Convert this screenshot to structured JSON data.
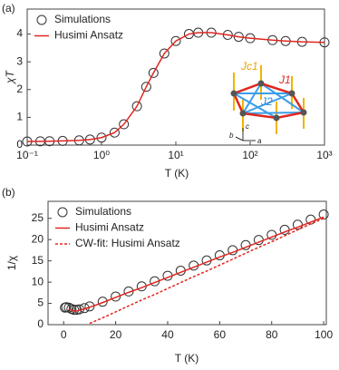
{
  "chart_data": [
    {
      "type": "line",
      "panel_label": "(a)",
      "x_label": "T (K)",
      "y_label": "χT",
      "xlog": true,
      "xlim": [
        0.1,
        1000
      ],
      "ylim": [
        0,
        4.9
      ],
      "xticks": [
        {
          "value": 0.1,
          "label": "10⁻¹"
        },
        {
          "value": 1,
          "label": "10⁰"
        },
        {
          "value": 10,
          "label": "10¹"
        },
        {
          "value": 100,
          "label": "10²"
        },
        {
          "value": 1000,
          "label": "10³"
        }
      ],
      "yticks": [
        0,
        1,
        2,
        3,
        4
      ],
      "legend": "upper left",
      "x": [
        0.1,
        0.15,
        0.2,
        0.3,
        0.5,
        0.7,
        1,
        1.5,
        2,
        3,
        4,
        5,
        7,
        10,
        15,
        20,
        30,
        50,
        70,
        100,
        200,
        300,
        500,
        1000
      ],
      "series": [
        {
          "name": "Simulations",
          "style": "markers",
          "color": "#333333",
          "values": [
            0.13,
            0.135,
            0.14,
            0.15,
            0.17,
            0.2,
            0.27,
            0.45,
            0.75,
            1.4,
            2.1,
            2.6,
            3.3,
            3.75,
            4.0,
            4.05,
            4.05,
            3.97,
            3.9,
            3.85,
            3.78,
            3.75,
            3.72,
            3.7
          ]
        },
        {
          "name": "Husimi Ansatz",
          "style": "solid",
          "color": "#e0261f",
          "values": [
            0.13,
            0.135,
            0.14,
            0.15,
            0.17,
            0.2,
            0.27,
            0.45,
            0.75,
            1.4,
            2.1,
            2.6,
            3.3,
            3.75,
            4.0,
            4.05,
            4.05,
            3.97,
            3.9,
            3.85,
            3.78,
            3.75,
            3.72,
            3.7
          ]
        }
      ],
      "inset_labels": [
        "Jc1",
        "J1",
        "J2",
        "c",
        "b",
        "a"
      ]
    },
    {
      "type": "line",
      "panel_label": "(b)",
      "x_label": "T (K)",
      "y_label": "1/χ",
      "xlog": false,
      "xlim": [
        -6,
        101
      ],
      "ylim": [
        0,
        29
      ],
      "xticks": [
        0,
        20,
        40,
        60,
        80,
        100
      ],
      "yticks": [
        0,
        5,
        10,
        15,
        20,
        25
      ],
      "legend": "upper left",
      "x": [
        0.5,
        1,
        2,
        3,
        4,
        5,
        6,
        8,
        10,
        15,
        20,
        25,
        30,
        35,
        40,
        45,
        50,
        55,
        60,
        65,
        70,
        75,
        80,
        85,
        90,
        95,
        100
      ],
      "series": [
        {
          "name": "Simulations",
          "style": "markers",
          "color": "#333333",
          "values": [
            4.0,
            4.1,
            4.0,
            3.7,
            3.5,
            3.5,
            3.6,
            3.9,
            4.3,
            5.4,
            6.6,
            7.8,
            9.0,
            10.2,
            11.5,
            12.7,
            13.9,
            15.1,
            16.3,
            17.5,
            18.7,
            19.9,
            21.1,
            22.3,
            23.5,
            24.7,
            25.9
          ]
        },
        {
          "name": "Husimi Ansatz",
          "style": "solid",
          "color": "#e0261f",
          "values": [
            null,
            null,
            3.7,
            3.4,
            3.2,
            3.2,
            3.4,
            3.7,
            4.1,
            5.2,
            6.4,
            7.6,
            8.7,
            9.9,
            11.1,
            12.3,
            13.5,
            14.7,
            15.9,
            17.0,
            18.2,
            19.4,
            20.6,
            21.8,
            22.9,
            24.1,
            25.3
          ]
        },
        {
          "name": "CW-fit: Husimi Ansatz",
          "style": "dashed",
          "color": "#e0261f",
          "values": [
            null,
            null,
            null,
            null,
            null,
            null,
            null,
            null,
            0.3,
            1.6,
            3.0,
            4.4,
            5.8,
            7.1,
            8.5,
            9.9,
            11.3,
            12.6,
            14.0,
            15.4,
            16.8,
            18.2,
            19.5,
            20.9,
            22.3,
            23.7,
            25.0
          ]
        }
      ]
    }
  ]
}
